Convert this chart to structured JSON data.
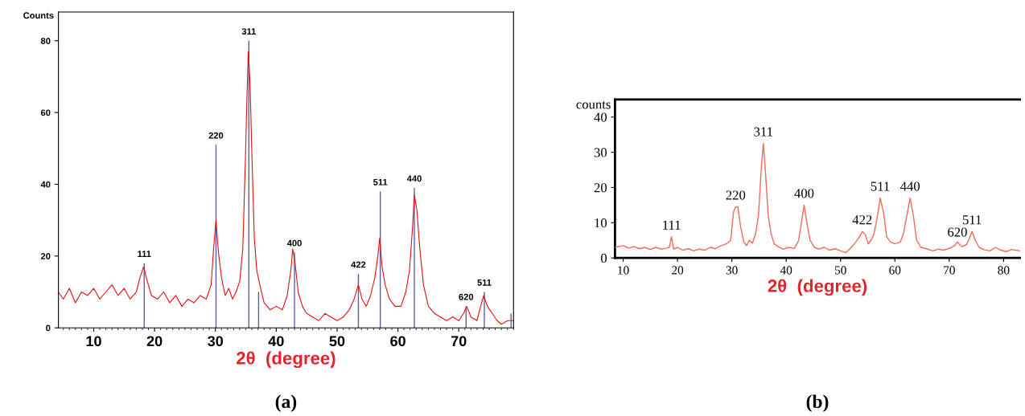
{
  "chart_data": [
    {
      "type": "line",
      "ylabel": "Counts",
      "xlabel": "2θ  (degree)",
      "xlim": [
        4.2,
        79
      ],
      "ylim": [
        0,
        88
      ],
      "xticks": [
        10,
        20,
        30,
        40,
        50,
        60,
        70
      ],
      "yticks": [
        0,
        20,
        40,
        60,
        80
      ],
      "grid": false,
      "legend": false,
      "series": [
        {
          "color": "#e01010",
          "x": [
            4.2,
            5,
            6,
            7,
            8,
            9,
            10,
            11,
            12,
            13,
            14,
            15,
            16,
            17,
            17.6,
            18.2,
            18.8,
            19.5,
            20.5,
            21.5,
            22.5,
            23.5,
            24.5,
            25.5,
            26.5,
            27.5,
            28.5,
            29.3,
            29.7,
            30.1,
            30.5,
            31,
            31.6,
            32.2,
            32.8,
            33.4,
            34,
            34.5,
            34.9,
            35.2,
            35.4,
            35.7,
            36,
            36.4,
            36.8,
            37.3,
            38,
            39,
            40,
            41,
            41.8,
            42.4,
            42.7,
            43.1,
            43.6,
            44.3,
            45,
            46,
            47,
            48,
            49,
            50,
            51,
            52,
            52.8,
            53.5,
            54.1,
            54.8,
            55.5,
            56.2,
            56.7,
            57,
            57.4,
            57.9,
            58.6,
            59.5,
            60.5,
            61.3,
            61.9,
            62.4,
            62.7,
            63.1,
            63.6,
            64.2,
            65,
            66,
            67,
            68,
            69,
            70,
            70.8,
            71.3,
            72,
            73,
            73.6,
            74.1,
            74.7,
            75.5,
            76.3,
            77,
            78,
            79
          ],
          "values": [
            10,
            8,
            11,
            7,
            10,
            9,
            11,
            8,
            10,
            12,
            9,
            11,
            8,
            10,
            14,
            17,
            13,
            9,
            8,
            10,
            7,
            9,
            6,
            8,
            7,
            9,
            8,
            12,
            22,
            30,
            21,
            14,
            9,
            11,
            8,
            10,
            13,
            22,
            45,
            65,
            77,
            68,
            48,
            25,
            16,
            12,
            7,
            5,
            6,
            5,
            9,
            16,
            22,
            18,
            10,
            6,
            4,
            3,
            2,
            4,
            3,
            2,
            3,
            5,
            8,
            12,
            8,
            6,
            9,
            14,
            20,
            25,
            17,
            12,
            8,
            6,
            6,
            10,
            16,
            28,
            37,
            33,
            22,
            12,
            6,
            4,
            3,
            2,
            3,
            2,
            4,
            6,
            3,
            2,
            6,
            9,
            6,
            4,
            2,
            1,
            2,
            2
          ]
        },
        {
          "type": "bar",
          "color": "#5a5aa0",
          "x": [
            18.3,
            30.1,
            35.5,
            37.1,
            43.0,
            53.5,
            57.1,
            62.7,
            71.2,
            74.2,
            78.6
          ],
          "values": [
            18,
            51,
            80,
            10,
            21,
            15,
            38,
            39,
            6,
            10,
            4
          ]
        }
      ],
      "annotations": [
        {
          "text": "111",
          "x": 18.3,
          "y": 18
        },
        {
          "text": "220",
          "x": 30.1,
          "y": 51
        },
        {
          "text": "311",
          "x": 35.5,
          "y": 80
        },
        {
          "text": "400",
          "x": 43.0,
          "y": 21
        },
        {
          "text": "422",
          "x": 53.5,
          "y": 15
        },
        {
          "text": "511",
          "x": 57.1,
          "y": 38
        },
        {
          "text": "440",
          "x": 62.7,
          "y": 39
        },
        {
          "text": "620",
          "x": 71.2,
          "y": 6
        },
        {
          "text": "511",
          "x": 74.2,
          "y": 10
        },
        "(a)"
      ]
    },
    {
      "type": "line",
      "ylabel": "counts",
      "xlabel": "2θ  (degree)",
      "xlim": [
        8.5,
        83
      ],
      "ylim": [
        0,
        45
      ],
      "xticks": [
        10,
        20,
        30,
        40,
        50,
        60,
        70,
        80
      ],
      "yticks": [
        0,
        10,
        20,
        30,
        40
      ],
      "grid": false,
      "legend": false,
      "series": [
        {
          "color": "#f06a5a",
          "x": [
            8.5,
            10,
            11,
            12,
            13,
            14,
            15,
            16,
            17,
            18,
            18.5,
            18.9,
            19.3,
            20,
            21,
            22,
            23,
            24,
            25,
            26,
            27,
            28,
            29,
            29.8,
            30.3,
            30.7,
            31.1,
            31.6,
            32.2,
            32.7,
            33.2,
            33.8,
            34.4,
            34.9,
            35.4,
            35.8,
            36.2,
            36.7,
            37.2,
            37.8,
            38.5,
            39.5,
            40.5,
            41.5,
            42.3,
            42.8,
            43.3,
            43.8,
            44.4,
            45.2,
            46,
            47,
            48,
            49,
            50,
            51,
            52,
            52.8,
            53.5,
            54,
            54.6,
            55.1,
            55.6,
            56.1,
            56.7,
            57.3,
            57.9,
            58.5,
            59.2,
            60,
            61,
            61.6,
            62.2,
            62.8,
            63.4,
            64,
            64.8,
            65.8,
            67,
            68,
            69,
            70,
            71,
            71.5,
            72.3,
            73.2,
            73.7,
            74.2,
            74.8,
            75.5,
            76.5,
            77.5,
            78.5,
            79.5,
            80.5,
            81.5,
            83
          ],
          "values": [
            3,
            3.5,
            2.8,
            3.2,
            2.6,
            3,
            2.4,
            3,
            2.5,
            2.8,
            3,
            6,
            2.5,
            3,
            2.2,
            2.6,
            2,
            2.5,
            2.2,
            3,
            2.6,
            3.5,
            4,
            5,
            13,
            14.5,
            14.5,
            9,
            4.5,
            3.5,
            5,
            4.2,
            7,
            12,
            25,
            32.5,
            24,
            12,
            7,
            4,
            3.2,
            2.5,
            3,
            2.7,
            5,
            10,
            15,
            10,
            5,
            3,
            2.5,
            3,
            2.2,
            2.6,
            2,
            1.5,
            3,
            4.5,
            6,
            7.5,
            6.5,
            4,
            5,
            6.5,
            11,
            17,
            13,
            6,
            4.5,
            4,
            4.5,
            7,
            12,
            17,
            12,
            5,
            3,
            2.6,
            2,
            2.5,
            2.2,
            2.7,
            3.5,
            4.5,
            3.2,
            3.8,
            5.5,
            7.5,
            5,
            3,
            2.3,
            2,
            3,
            2.2,
            1.8,
            2.4,
            2
          ]
        }
      ],
      "annotations": [
        {
          "text": "111",
          "x": 18.9,
          "y": 6
        },
        {
          "text": "220",
          "x": 30.7,
          "y": 14.5
        },
        {
          "text": "311",
          "x": 35.8,
          "y": 32.5
        },
        {
          "text": "400",
          "x": 43.3,
          "y": 15
        },
        {
          "text": "422",
          "x": 54,
          "y": 7.5
        },
        {
          "text": "511",
          "x": 57.3,
          "y": 17
        },
        {
          "text": "440",
          "x": 62.8,
          "y": 17
        },
        {
          "text": "620",
          "x": 71.5,
          "y": 4
        },
        {
          "text": "511",
          "x": 74.2,
          "y": 7.5
        },
        "(b)"
      ]
    }
  ]
}
